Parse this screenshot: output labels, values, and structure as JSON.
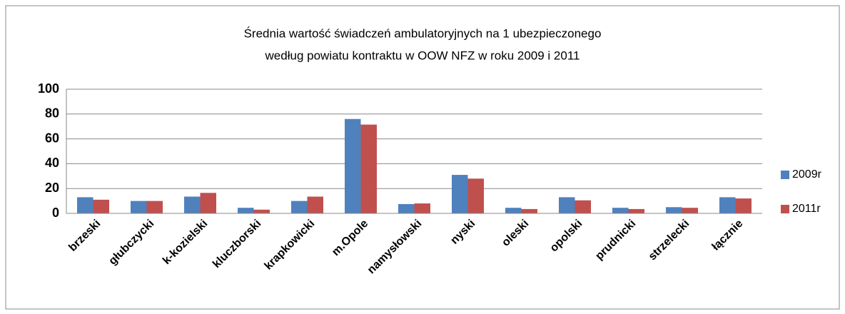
{
  "chart_data": {
    "type": "bar",
    "title": [
      "Średnia wartość świadczeń ambulatoryjnych na 1 ubezpieczonego",
      "według powiatu kontraktu w OOW NFZ w roku 2009 i 2011"
    ],
    "categories": [
      "brzeski",
      "głubczycki",
      "k-kozielski",
      "kluczborski",
      "krapkowicki",
      "m.Opole",
      "namysłowski",
      "nyski",
      "oleski",
      "opolski",
      "prudnicki",
      "strzelecki",
      "łącznie"
    ],
    "series": [
      {
        "name": "2009r",
        "color": "#4f81bd",
        "values": [
          13,
          10,
          13.5,
          4.5,
          10,
          76,
          7.5,
          31,
          4.5,
          13,
          4.5,
          5,
          13
        ]
      },
      {
        "name": "2011r",
        "color": "#c0504d",
        "values": [
          11,
          10,
          16.5,
          3,
          13.5,
          71.5,
          8,
          28,
          3.5,
          10.5,
          3.5,
          4.5,
          12
        ]
      }
    ],
    "ylim": [
      0,
      100
    ],
    "yticks": [
      0,
      20,
      40,
      60,
      80,
      100
    ],
    "grid": true,
    "legend": "right"
  }
}
